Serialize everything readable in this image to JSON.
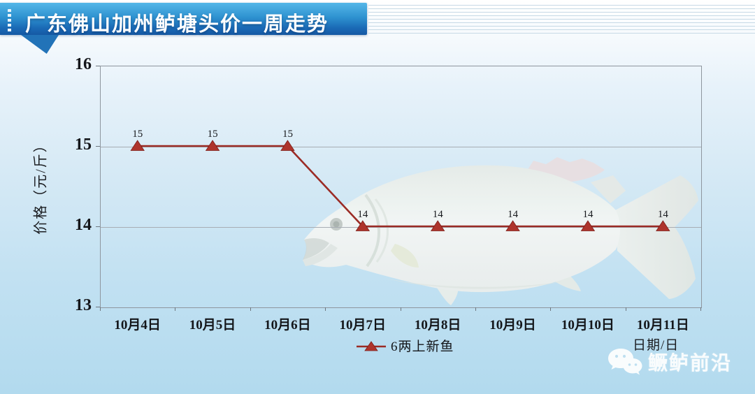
{
  "banner": {
    "title": "广东佛山加州鲈塘头价一周走势",
    "gradient_top": "#55b7e8",
    "gradient_bottom": "#1659a4",
    "text_color": "#ffffff"
  },
  "chart_data": {
    "type": "line",
    "title": "广东佛山加州鲈塘头价一周走势",
    "categories": [
      "10月4日",
      "10月5日",
      "10月6日",
      "10月7日",
      "10月8日",
      "10月9日",
      "10月10日",
      "10月11日"
    ],
    "series": [
      {
        "name": "6两上新鱼",
        "values": [
          15,
          15,
          15,
          14,
          14,
          14,
          14,
          14
        ],
        "color": "#9b2b25",
        "marker": "triangle",
        "marker_color": "#ae342c"
      }
    ],
    "ylabel": "价格（元/斤）",
    "xlabel": "日期/日",
    "ylim": [
      13,
      16
    ],
    "yticks": [
      13,
      14,
      15,
      16
    ],
    "grid": true,
    "gridline_color": "#a7adb4",
    "axis_color": "#8e969e",
    "legend_position": "bottom",
    "data_labels": true,
    "background_image": "pale largemouth bass photo"
  },
  "watermark": {
    "icon": "wechat-icon",
    "name": "鳜鲈前沿"
  }
}
